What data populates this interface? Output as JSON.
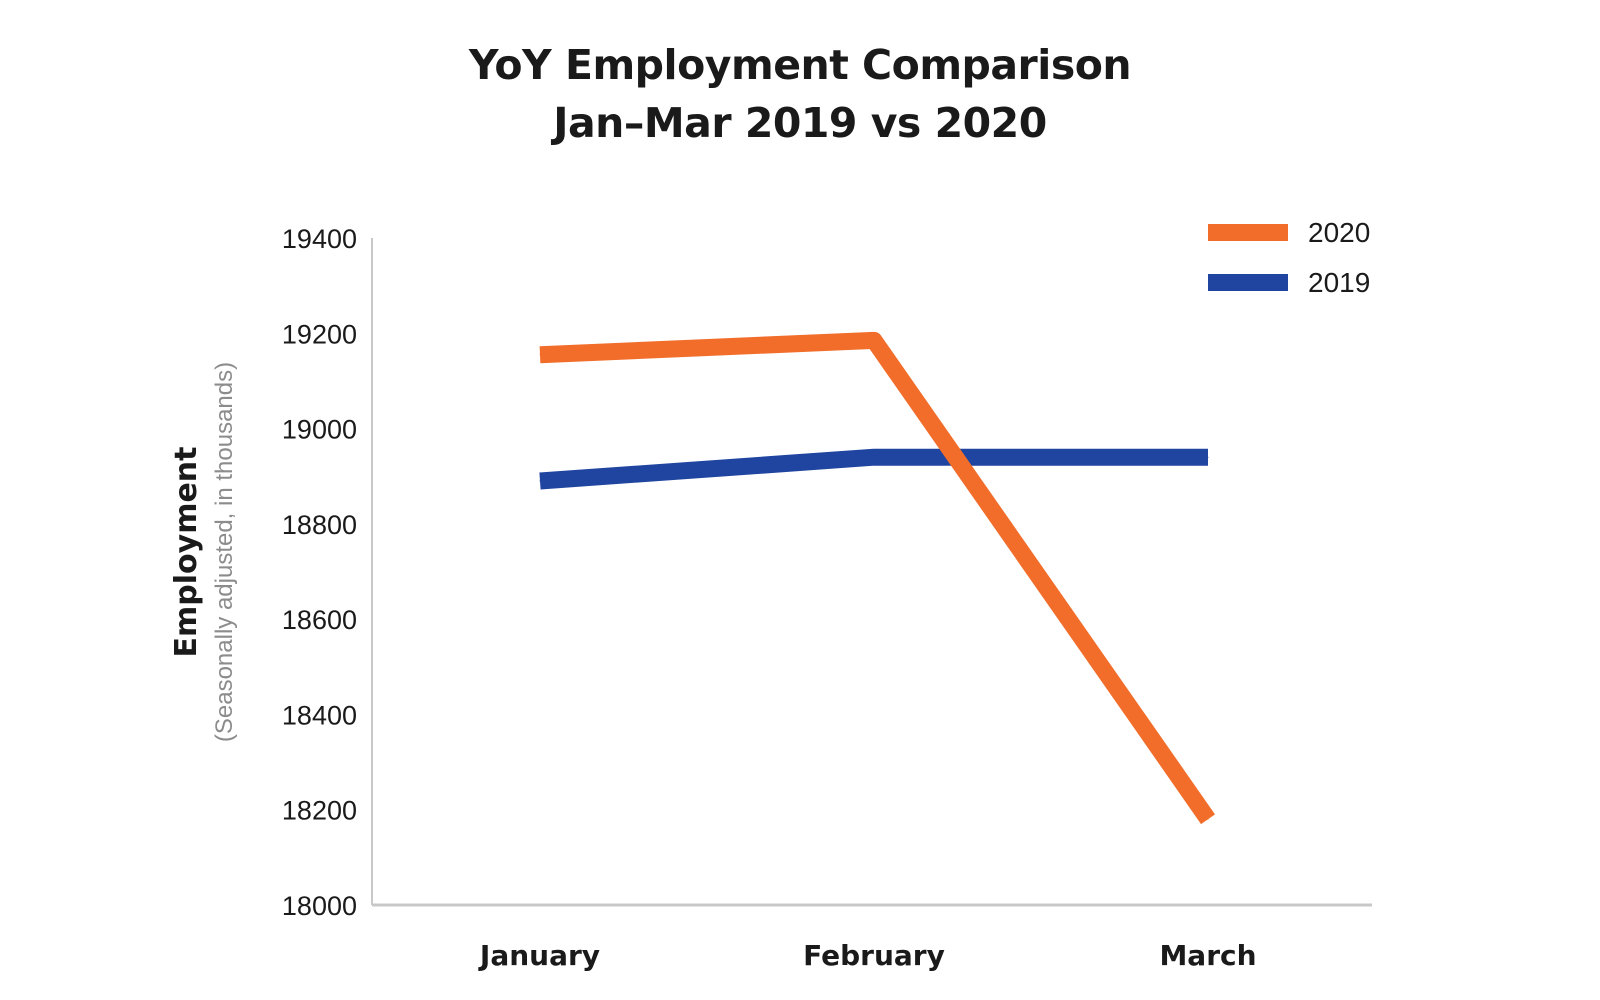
{
  "chart_data": {
    "type": "line",
    "title": "YoY Employment Comparison",
    "subtitle": "Jan–Mar 2019 vs 2020",
    "xlabel": "",
    "ylabel": "Employment",
    "ylabel_sub": "(Seasonally adjusted, in thousands)",
    "categories": [
      "January",
      "February",
      "March"
    ],
    "y_ticks": [
      "19400",
      "19200",
      "19000",
      "18800",
      "18600",
      "18400",
      "18200",
      "18000"
    ],
    "ylim": [
      18000,
      19400
    ],
    "grid": false,
    "legend_position": "top-right",
    "series": [
      {
        "name": "2020",
        "color": "#f26c2a",
        "values": [
          19155,
          19185,
          18180
        ]
      },
      {
        "name": "2019",
        "color": "#1f45a0",
        "values": [
          18890,
          18940,
          18940
        ]
      }
    ]
  }
}
